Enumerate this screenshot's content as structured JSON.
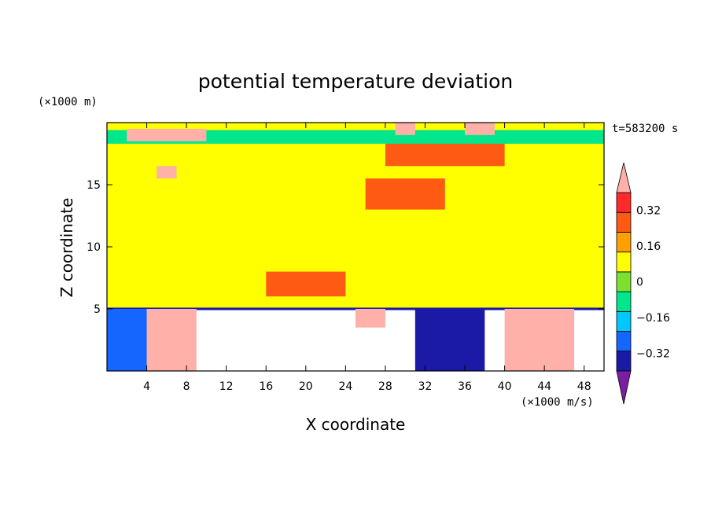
{
  "chart_data": {
    "type": "heatmap",
    "title": "potential temperature deviation",
    "xlabel": "X coordinate",
    "ylabel": "Z coordinate",
    "x_unit": "(×1000 m/s)",
    "y_unit": "(×1000 m)",
    "time_label": "t=583200 s",
    "xlim": [
      0,
      50
    ],
    "ylim": [
      0,
      20
    ],
    "x_ticks": [
      4,
      8,
      12,
      16,
      20,
      24,
      28,
      32,
      36,
      40,
      44,
      48
    ],
    "x_tick_labels": [
      "4",
      "8",
      "12",
      "16",
      "20",
      "24",
      "28",
      "32",
      "36",
      "40",
      "44",
      "48"
    ],
    "y_ticks": [
      5,
      10,
      15
    ],
    "y_tick_labels": [
      "5",
      "10",
      "15"
    ],
    "colorbar": {
      "levels": [
        -0.4,
        -0.32,
        -0.24,
        -0.16,
        -0.08,
        0,
        0.08,
        0.16,
        0.24,
        0.32,
        0.4
      ],
      "tick_labels": [
        "0.32",
        "0.16",
        "0",
        "−0.16",
        "−0.32"
      ],
      "tick_values": [
        0.32,
        0.16,
        0,
        -0.16,
        -0.32
      ],
      "colors": [
        "#7b1fa2",
        "#1a1aa6",
        "#1565ff",
        "#00c8ff",
        "#00e68c",
        "#7ce030",
        "#ffff00",
        "#ffa000",
        "#ff5a14",
        "#ff2a2a",
        "#ffb0a8"
      ],
      "extend": "both"
    },
    "regions": [
      {
        "x": [
          0,
          50
        ],
        "z": [
          5,
          15
        ],
        "value": 0.02
      },
      {
        "x": [
          0,
          50
        ],
        "z": [
          15,
          20
        ],
        "value": 0.05
      },
      {
        "x": [
          16,
          24
        ],
        "z": [
          6,
          8
        ],
        "value": 0.18
      },
      {
        "x": [
          26,
          34
        ],
        "z": [
          13,
          15.5
        ],
        "value": 0.18
      },
      {
        "x": [
          28,
          40
        ],
        "z": [
          16.5,
          18.5
        ],
        "value": 0.2
      },
      {
        "x": [
          0,
          50
        ],
        "z": [
          18.3,
          19.4
        ],
        "value": -0.1
      },
      {
        "x": [
          2,
          10
        ],
        "z": [
          18.5,
          19.5
        ],
        "value": 0.4
      },
      {
        "x": [
          5,
          7
        ],
        "z": [
          15.5,
          16.5
        ],
        "value": 0.38
      },
      {
        "x": [
          29,
          31
        ],
        "z": [
          19,
          20
        ],
        "value": 0.4
      },
      {
        "x": [
          36,
          39
        ],
        "z": [
          19,
          20
        ],
        "value": 0.4
      },
      {
        "x": [
          0,
          50
        ],
        "z": [
          4.9,
          5.1
        ],
        "value": -0.36
      },
      {
        "x": [
          4,
          9
        ],
        "z": [
          0,
          5
        ],
        "value": 0.42
      },
      {
        "x": [
          0,
          4
        ],
        "z": [
          0,
          5
        ],
        "value": -0.3
      },
      {
        "x": [
          31,
          38
        ],
        "z": [
          0,
          5
        ],
        "value": -0.38
      },
      {
        "x": [
          40,
          47
        ],
        "z": [
          0,
          5
        ],
        "value": 0.42
      },
      {
        "x": [
          25,
          28
        ],
        "z": [
          3.5,
          5
        ],
        "value": 0.4
      }
    ]
  }
}
